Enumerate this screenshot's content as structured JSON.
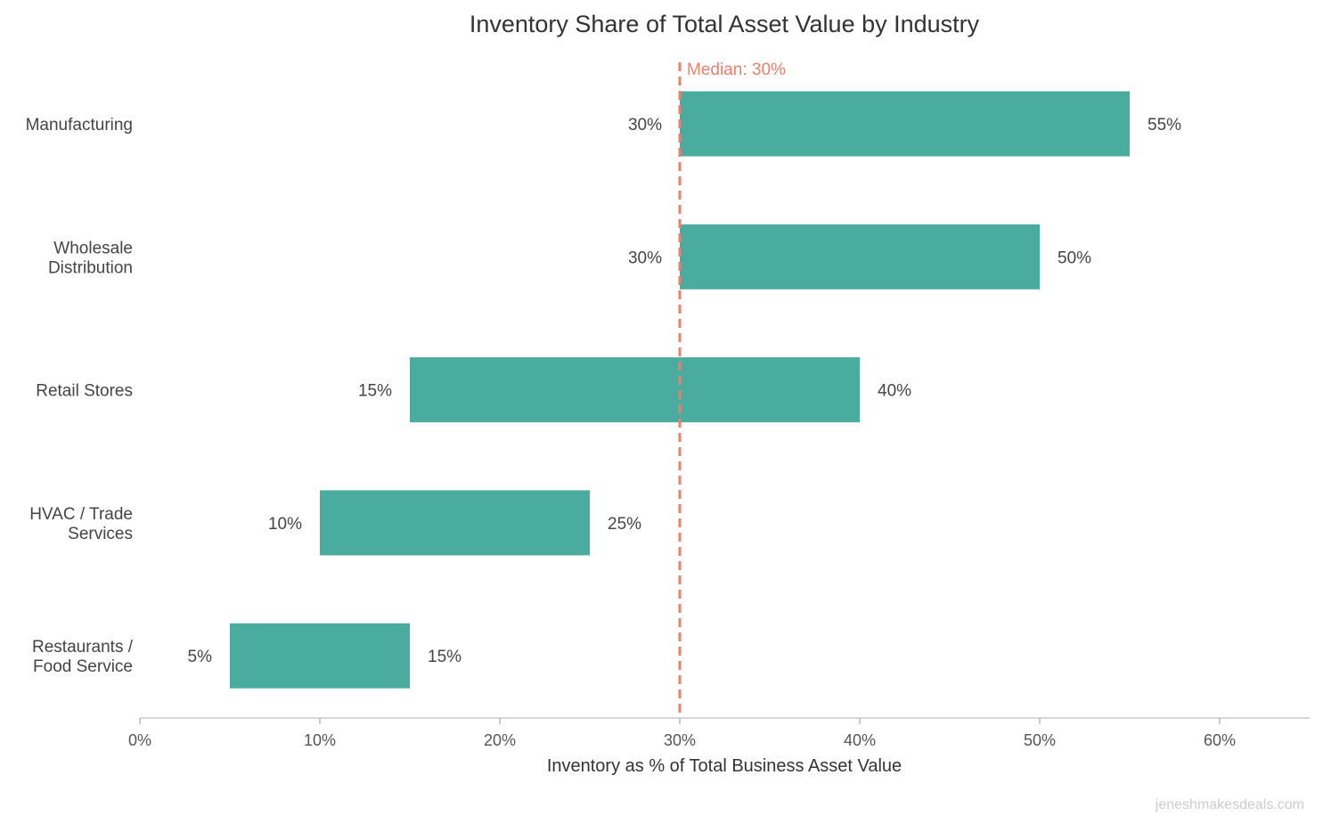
{
  "chart_data": {
    "type": "bar",
    "orientation": "horizontal-range",
    "title": "Inventory Share of Total Asset Value by Industry",
    "xlabel": "Inventory as % of Total Business Asset Value",
    "ylabel": "",
    "xlim": [
      0,
      65
    ],
    "x_ticks": [
      "0%",
      "10%",
      "20%",
      "30%",
      "40%",
      "50%",
      "60%"
    ],
    "x_tick_values": [
      0,
      10,
      20,
      30,
      40,
      50,
      60
    ],
    "grid": false,
    "categories": [
      [
        "Manufacturing"
      ],
      [
        "Wholesale",
        "Distribution"
      ],
      [
        "Retail Stores"
      ],
      [
        "HVAC / Trade",
        "Services"
      ],
      [
        "Restaurants /",
        "Food Service"
      ]
    ],
    "low": [
      30,
      30,
      15,
      10,
      5
    ],
    "high": [
      55,
      50,
      40,
      25,
      15
    ],
    "low_labels": [
      "30%",
      "30%",
      "15%",
      "10%",
      "5%"
    ],
    "high_labels": [
      "55%",
      "50%",
      "40%",
      "25%",
      "15%"
    ],
    "median": {
      "value": 30,
      "label": "Median: 30%"
    },
    "colors": {
      "bar": "#4aab9f",
      "median": "#e8826a"
    },
    "watermark": "jeneshmakesdeals.com"
  }
}
